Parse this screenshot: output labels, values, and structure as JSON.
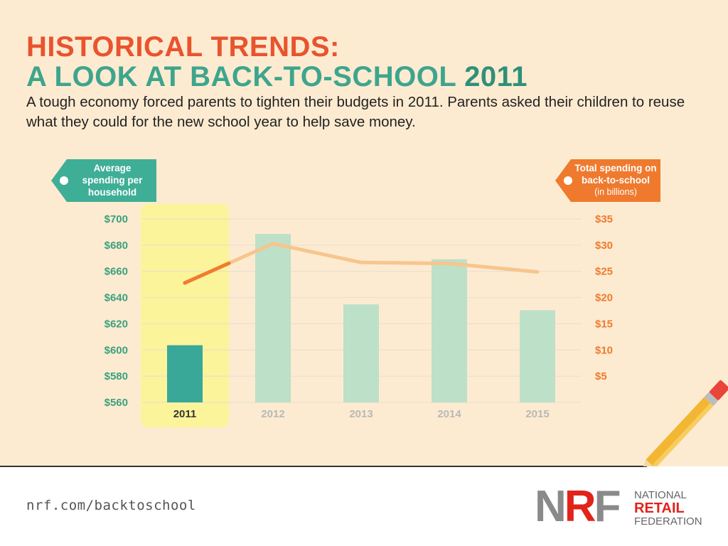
{
  "header": {
    "title_line1": "HISTORICAL TRENDS:",
    "title_line2": "A LOOK AT BACK-TO-SCHOOL 2011",
    "subtitle": "A tough economy forced parents to tighten their budgets in 2011. Parents asked their children to reuse what they could for the new school year to help save money."
  },
  "tags": {
    "left": "Average spending per household",
    "right_line1": "Total spending on back-to-school",
    "right_line2": "(in billions)"
  },
  "colors": {
    "title_orange": "#e8542e",
    "title_green": "#3ea58d",
    "bar_highlight": "#3aa898",
    "bar_faded": "#bde0c8",
    "line_highlight": "#f07d2c",
    "line_faded": "#f7c58e",
    "highlight_band": "#fbf49a",
    "left_axis": "#3aa17e",
    "right_axis": "#ef7a2e"
  },
  "chart_data": {
    "type": "bar",
    "categories": [
      "2011",
      "2012",
      "2013",
      "2014",
      "2015"
    ],
    "highlight": "2011",
    "series": [
      {
        "name": "Average spending per household",
        "axis": "left",
        "type": "bar",
        "values": [
          603.63,
          688.62,
          634.78,
          669.28,
          630.36
        ]
      },
      {
        "name": "Total spending on back-to-school",
        "axis": "right",
        "type": "line",
        "values": [
          22.8,
          30.3,
          26.7,
          26.5,
          24.9
        ]
      }
    ],
    "left_axis": {
      "ticks": [
        "$560",
        "$580",
        "$600",
        "$620",
        "$640",
        "$660",
        "$680",
        "$700"
      ],
      "ylim": [
        560,
        700
      ]
    },
    "right_axis": {
      "ticks": [
        "$5",
        "$10",
        "$15",
        "$20",
        "$25",
        "$30",
        "$35"
      ],
      "ylim": [
        0,
        35
      ],
      "unit": "(in billions)"
    },
    "grid": true
  },
  "footer": {
    "url": "nrf.com/backtoschool",
    "logo_mark": "NRF",
    "logo_line1": "NATIONAL",
    "logo_line2": "RETAIL",
    "logo_line3": "FEDERATION"
  }
}
